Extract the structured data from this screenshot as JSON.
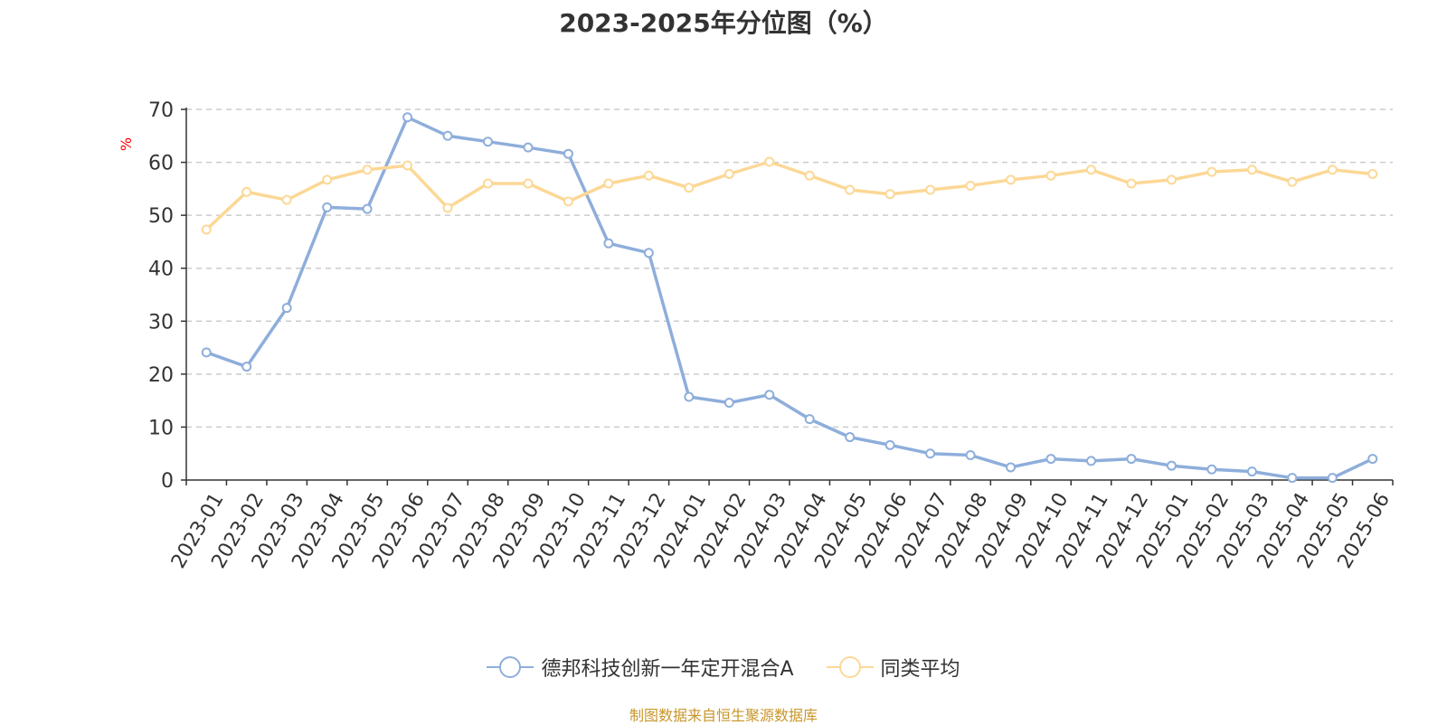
{
  "chart_data": {
    "type": "line",
    "title": "2023-2025年分位图（%）",
    "ylabel": "%",
    "xlabel": "",
    "ylim": [
      0,
      70
    ],
    "yticks": [
      0,
      10,
      20,
      30,
      40,
      50,
      60,
      70
    ],
    "grid": true,
    "legend_position": "bottom",
    "categories": [
      "2023-01",
      "2023-02",
      "2023-03",
      "2023-04",
      "2023-05",
      "2023-06",
      "2023-07",
      "2023-08",
      "2023-09",
      "2023-10",
      "2023-11",
      "2023-12",
      "2024-01",
      "2024-02",
      "2024-03",
      "2024-04",
      "2024-05",
      "2024-06",
      "2024-07",
      "2024-08",
      "2024-09",
      "2024-10",
      "2024-11",
      "2024-12",
      "2025-01",
      "2025-02",
      "2025-03",
      "2025-04",
      "2025-05",
      "2025-06"
    ],
    "series": [
      {
        "name": "德邦科技创新一年定开混合A",
        "color": "#8eaedb",
        "values": [
          24.1,
          21.4,
          32.5,
          51.5,
          51.2,
          68.5,
          65.0,
          63.9,
          62.8,
          61.6,
          44.7,
          42.9,
          15.7,
          14.6,
          16.1,
          11.5,
          8.1,
          6.6,
          5.0,
          4.7,
          2.4,
          4.0,
          3.6,
          4.0,
          2.7,
          2.0,
          1.6,
          0.4,
          0.4,
          4.0
        ]
      },
      {
        "name": "同类平均",
        "color": "#fcd896",
        "values": [
          47.3,
          54.4,
          52.9,
          56.7,
          58.6,
          59.4,
          51.4,
          56.0,
          56.0,
          52.6,
          56.0,
          57.5,
          55.2,
          57.8,
          60.1,
          57.5,
          54.8,
          54.0,
          54.8,
          55.6,
          56.7,
          57.5,
          58.6,
          56.0,
          56.7,
          58.2,
          58.6,
          56.3,
          58.6,
          57.8
        ]
      }
    ]
  },
  "source": "制图数据来自恒生聚源数据库"
}
